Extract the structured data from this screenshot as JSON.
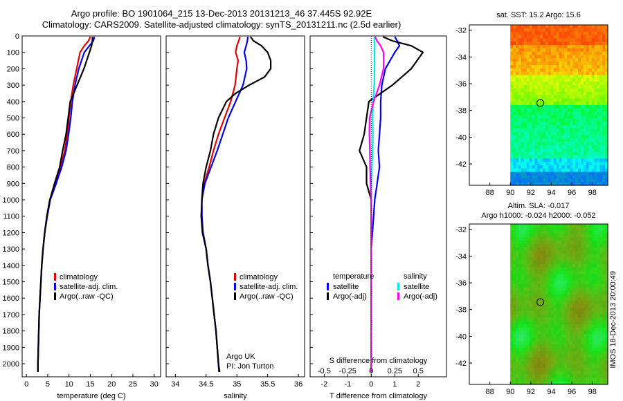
{
  "header": {
    "title_line1": "Argo profile: BO 1901064_215 13-Dec-2013 20131213_46 37.445S 92.92E",
    "title_line2": "Climatology: CARS2009. Satellite-adjusted climatology: synTS_20131211.nc (2.5d earlier)"
  },
  "colors": {
    "climatology": "#e00000",
    "satellite": "#0000ee",
    "argo": "#000000",
    "sat_salinity": "#00e5ee",
    "argo_salinity": "#ff00ff"
  },
  "chart_data": [
    {
      "type": "line",
      "id": "temperature",
      "xlabel": "temperature (deg C)",
      "ylabel": "",
      "xlim": [
        -1,
        31.5
      ],
      "ylim": [
        2080,
        0
      ],
      "xticks": [
        "0",
        "5",
        "10",
        "15",
        "20",
        "25",
        "30"
      ],
      "yticks": [
        "0",
        "100",
        "200",
        "300",
        "400",
        "500",
        "600",
        "700",
        "800",
        "900",
        "1000",
        "1100",
        "1200",
        "1300",
        "1400",
        "1500",
        "1600",
        "1700",
        "1800",
        "1900",
        "2000"
      ],
      "legend": [
        "climatology",
        "satellite-adj. clim.",
        "Argo(..raw -QC)"
      ],
      "series": [
        {
          "name": "climatology",
          "color": "#e00000",
          "points": [
            [
              15.0,
              5
            ],
            [
              14.6,
              30
            ],
            [
              13.6,
              60
            ],
            [
              12.6,
              100
            ],
            [
              11.8,
              200
            ],
            [
              11.0,
              300
            ],
            [
              10.4,
              400
            ],
            [
              10.0,
              500
            ],
            [
              9.6,
              600
            ],
            [
              9.0,
              700
            ],
            [
              8.0,
              800
            ],
            [
              6.8,
              900
            ],
            [
              5.5,
              1000
            ],
            [
              4.8,
              1100
            ],
            [
              4.3,
              1200
            ],
            [
              3.9,
              1300
            ],
            [
              3.6,
              1400
            ],
            [
              3.4,
              1500
            ],
            [
              3.2,
              1600
            ],
            [
              3.0,
              1700
            ],
            [
              2.9,
              1800
            ],
            [
              2.8,
              1900
            ],
            [
              2.7,
              2000
            ],
            [
              2.7,
              2050
            ]
          ]
        },
        {
          "name": "satellite-adj. clim.",
          "color": "#0000ee",
          "points": [
            [
              16.0,
              5
            ],
            [
              15.7,
              30
            ],
            [
              14.8,
              60
            ],
            [
              13.6,
              100
            ],
            [
              12.3,
              200
            ],
            [
              11.4,
              300
            ],
            [
              10.8,
              400
            ],
            [
              10.4,
              500
            ],
            [
              9.9,
              600
            ],
            [
              9.3,
              700
            ],
            [
              8.3,
              800
            ],
            [
              7.0,
              900
            ],
            [
              5.6,
              1000
            ],
            [
              4.9,
              1100
            ],
            [
              4.3,
              1200
            ],
            [
              3.9,
              1300
            ],
            [
              3.6,
              1400
            ],
            [
              3.4,
              1500
            ],
            [
              3.2,
              1600
            ],
            [
              3.0,
              1700
            ],
            [
              2.9,
              1800
            ],
            [
              2.8,
              1900
            ],
            [
              2.7,
              2000
            ],
            [
              2.7,
              2050
            ]
          ]
        },
        {
          "name": "Argo(..raw -QC)",
          "color": "#000000",
          "points": [
            [
              15.5,
              5
            ],
            [
              15.5,
              30
            ],
            [
              15.3,
              60
            ],
            [
              14.8,
              100
            ],
            [
              13.5,
              200
            ],
            [
              11.9,
              300
            ],
            [
              10.3,
              400
            ],
            [
              9.8,
              500
            ],
            [
              9.3,
              600
            ],
            [
              8.5,
              700
            ],
            [
              7.8,
              800
            ],
            [
              6.6,
              900
            ],
            [
              5.5,
              1000
            ],
            [
              4.8,
              1100
            ],
            [
              4.3,
              1200
            ],
            [
              3.9,
              1300
            ],
            [
              3.6,
              1400
            ],
            [
              3.4,
              1500
            ],
            [
              3.2,
              1600
            ],
            [
              3.0,
              1700
            ],
            [
              2.9,
              1800
            ],
            [
              2.8,
              1900
            ],
            [
              2.7,
              2000
            ],
            [
              2.7,
              2050
            ]
          ]
        }
      ]
    },
    {
      "type": "line",
      "id": "salinity",
      "xlabel": "salinity",
      "xlim": [
        33.85,
        36.1
      ],
      "ylim": [
        2080,
        0
      ],
      "xticks": [
        "34",
        "34.5",
        "35",
        "35.5",
        "36"
      ],
      "legend": [
        "climatology",
        "satellite-adj. clim.",
        "Argo(..raw -QC)"
      ],
      "annotation": [
        "Argo UK",
        "PI: Jon Turton"
      ],
      "series": [
        {
          "name": "climatology",
          "color": "#e00000",
          "points": [
            [
              35.05,
              5
            ],
            [
              35.03,
              30
            ],
            [
              35.0,
              60
            ],
            [
              34.98,
              100
            ],
            [
              35.02,
              150
            ],
            [
              35.0,
              200
            ],
            [
              34.97,
              300
            ],
            [
              34.9,
              400
            ],
            [
              34.8,
              500
            ],
            [
              34.7,
              600
            ],
            [
              34.62,
              700
            ],
            [
              34.55,
              800
            ],
            [
              34.47,
              900
            ],
            [
              34.43,
              1000
            ],
            [
              34.43,
              1100
            ],
            [
              34.45,
              1200
            ],
            [
              34.5,
              1300
            ],
            [
              34.53,
              1400
            ],
            [
              34.57,
              1500
            ],
            [
              34.6,
              1600
            ],
            [
              34.63,
              1700
            ],
            [
              34.66,
              1800
            ],
            [
              34.68,
              1900
            ],
            [
              34.7,
              2000
            ],
            [
              34.71,
              2050
            ]
          ]
        },
        {
          "name": "satellite-adj. clim.",
          "color": "#0000ee",
          "points": [
            [
              35.18,
              5
            ],
            [
              35.17,
              30
            ],
            [
              35.15,
              60
            ],
            [
              35.12,
              100
            ],
            [
              35.15,
              150
            ],
            [
              35.16,
              200
            ],
            [
              35.1,
              300
            ],
            [
              34.98,
              400
            ],
            [
              34.86,
              500
            ],
            [
              34.77,
              600
            ],
            [
              34.68,
              700
            ],
            [
              34.58,
              800
            ],
            [
              34.48,
              900
            ],
            [
              34.43,
              1000
            ],
            [
              34.43,
              1100
            ],
            [
              34.45,
              1200
            ],
            [
              34.5,
              1300
            ],
            [
              34.53,
              1400
            ],
            [
              34.57,
              1500
            ],
            [
              34.6,
              1600
            ],
            [
              34.63,
              1700
            ],
            [
              34.66,
              1800
            ],
            [
              34.68,
              1900
            ],
            [
              34.7,
              2000
            ],
            [
              34.71,
              2050
            ]
          ]
        },
        {
          "name": "Argo(..raw -QC)",
          "color": "#000000",
          "points": [
            [
              35.22,
              5
            ],
            [
              35.27,
              30
            ],
            [
              35.4,
              60
            ],
            [
              35.5,
              100
            ],
            [
              35.55,
              150
            ],
            [
              35.55,
              200
            ],
            [
              35.45,
              250
            ],
            [
              35.2,
              300
            ],
            [
              34.98,
              350
            ],
            [
              34.83,
              400
            ],
            [
              34.7,
              500
            ],
            [
              34.62,
              600
            ],
            [
              34.57,
              700
            ],
            [
              34.5,
              800
            ],
            [
              34.45,
              900
            ],
            [
              34.43,
              1000
            ],
            [
              34.42,
              1100
            ],
            [
              34.44,
              1200
            ],
            [
              34.5,
              1300
            ],
            [
              34.53,
              1400
            ],
            [
              34.57,
              1500
            ],
            [
              34.6,
              1600
            ],
            [
              34.63,
              1700
            ],
            [
              34.66,
              1800
            ],
            [
              34.68,
              1900
            ],
            [
              34.7,
              2000
            ],
            [
              34.72,
              2050
            ]
          ]
        }
      ]
    },
    {
      "type": "line",
      "id": "differences",
      "xlabel": "T difference from climatology",
      "xlabel_top": "S difference from climatology",
      "xlim": [
        -2.6,
        3.2
      ],
      "ylim": [
        2080,
        0
      ],
      "xticks": [
        "-2",
        "-1",
        "0",
        "1",
        "2"
      ],
      "xticks_top": [
        "-0.5",
        "-0.25",
        "0",
        "0.25",
        "0.5"
      ],
      "legend_temperature": {
        "title": "temperature",
        "entries": [
          "satellite",
          "Argo(-adj)"
        ]
      },
      "legend_salinity": {
        "title": "salinity",
        "entries": [
          "satellite",
          "Argo(-adj)"
        ]
      },
      "series": [
        {
          "name": "temperature satellite",
          "color": "#0000ee",
          "points": [
            [
              1.0,
              5
            ],
            [
              1.1,
              30
            ],
            [
              1.2,
              60
            ],
            [
              1.0,
              100
            ],
            [
              0.6,
              200
            ],
            [
              0.45,
              300
            ],
            [
              0.4,
              400
            ],
            [
              0.4,
              500
            ],
            [
              0.35,
              600
            ],
            [
              0.3,
              700
            ],
            [
              0.35,
              800
            ],
            [
              0.25,
              900
            ],
            [
              0.15,
              1000
            ],
            [
              0.1,
              1100
            ],
            [
              0.05,
              1200
            ],
            [
              0.0,
              1300
            ],
            [
              0.0,
              1500
            ],
            [
              0.0,
              2000
            ],
            [
              0.0,
              2050
            ]
          ]
        },
        {
          "name": "temperature Argo(-adj)",
          "color": "#000000",
          "points": [
            [
              0.5,
              5
            ],
            [
              0.9,
              30
            ],
            [
              1.7,
              60
            ],
            [
              2.2,
              100
            ],
            [
              1.7,
              200
            ],
            [
              0.9,
              300
            ],
            [
              -0.1,
              400
            ],
            [
              -0.2,
              500
            ],
            [
              -0.3,
              600
            ],
            [
              -0.5,
              700
            ],
            [
              -0.2,
              800
            ],
            [
              -0.2,
              900
            ],
            [
              0.0,
              1000
            ],
            [
              0.0,
              1100
            ],
            [
              0.0,
              1200
            ],
            [
              0.0,
              1300
            ],
            [
              0.0,
              1500
            ],
            [
              0.0,
              2000
            ],
            [
              0.0,
              2050
            ]
          ]
        },
        {
          "name": "salinity satellite",
          "color": "#00e5ee",
          "points": [
            [
              0.13,
              5
            ],
            [
              0.14,
              30
            ],
            [
              0.15,
              60
            ],
            [
              0.14,
              100
            ],
            [
              0.14,
              200
            ],
            [
              0.13,
              300
            ],
            [
              0.08,
              400
            ],
            [
              0.06,
              500
            ],
            [
              0.07,
              600
            ],
            [
              0.06,
              700
            ],
            [
              0.03,
              800
            ],
            [
              0.01,
              900
            ],
            [
              0.0,
              1000
            ],
            [
              0.0,
              1100
            ],
            [
              0.0,
              1300
            ],
            [
              0.0,
              1500
            ],
            [
              0.0,
              2050
            ]
          ]
        },
        {
          "name": "salinity Argo(-adj)",
          "color": "#ff00ff",
          "points": [
            [
              0.17,
              5
            ],
            [
              0.24,
              30
            ],
            [
              0.4,
              60
            ],
            [
              0.52,
              100
            ],
            [
              0.53,
              150
            ],
            [
              0.52,
              200
            ],
            [
              0.35,
              300
            ],
            [
              0.1,
              400
            ],
            [
              -0.07,
              500
            ],
            [
              -0.08,
              600
            ],
            [
              -0.06,
              700
            ],
            [
              -0.05,
              800
            ],
            [
              -0.03,
              900
            ],
            [
              -0.01,
              1000
            ],
            [
              0.0,
              1100
            ],
            [
              0.0,
              1300
            ],
            [
              0.0,
              1500
            ],
            [
              0.0,
              2050
            ]
          ]
        }
      ]
    },
    {
      "type": "heatmap",
      "id": "sst_map",
      "title": "sat. SST: 15.2  Argo: 15.6",
      "xlim": [
        86,
        99.5
      ],
      "ylim": [
        -43.6,
        -31.6
      ],
      "xticks": [
        "88",
        "90",
        "92",
        "94",
        "96",
        "98"
      ],
      "yticks": [
        "-32",
        "-34",
        "-36",
        "-38",
        "-40",
        "-42"
      ],
      "marker": [
        92.92,
        -37.445
      ]
    },
    {
      "type": "heatmap",
      "id": "sla_map",
      "title_line1": "Altim. SLA: -0.017",
      "title_line2": "Argo h1000: -0.024 h2000: -0.052",
      "xlim": [
        86,
        99.5
      ],
      "ylim": [
        -43.6,
        -31.6
      ],
      "xticks": [
        "88",
        "90",
        "92",
        "94",
        "96",
        "98"
      ],
      "yticks": [
        "-32",
        "-34",
        "-36",
        "-38",
        "-40",
        "-42"
      ],
      "marker": [
        92.92,
        -37.445
      ],
      "side_label": "IMOS 18-Dec-2013 20:00:49"
    }
  ]
}
